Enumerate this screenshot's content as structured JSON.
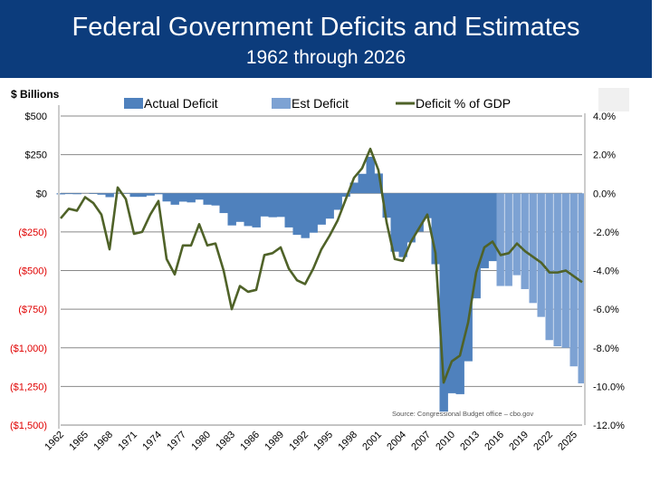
{
  "header": {
    "title": "Federal Government Deficits and Estimates",
    "subtitle": "1962 through 2026"
  },
  "chart_data": {
    "type": "area+line",
    "title": "Federal Government Deficits and Estimates",
    "subtitle": "1962 through 2026",
    "ylabel": "$ Billions",
    "ylim": [
      -1500,
      500
    ],
    "y2lim": [
      -12,
      4
    ],
    "yticks": [
      "$500",
      "$250",
      "$0",
      "($250)",
      "($500)",
      "($750)",
      "($1,000)",
      "($1,250)",
      "($1,500)"
    ],
    "y2ticks": [
      "4.0%",
      "2.0%",
      "0.0%",
      "-2.0%",
      "-4.0%",
      "-6.0%",
      "-8.0%",
      "-10.0%",
      "-12.0%"
    ],
    "xticks": [
      "1962",
      "1965",
      "1968",
      "1971",
      "1974",
      "1977",
      "1980",
      "1983",
      "1986",
      "1989",
      "1992",
      "1995",
      "1998",
      "2001",
      "2004",
      "2007",
      "2010",
      "2013",
      "2016",
      "2019",
      "2022",
      "2025"
    ],
    "grid": true,
    "legend": "top",
    "source": "Source: Congressional Budget office – cbo.gov",
    "colors": {
      "actual": "#4f81bd",
      "estimate": "#7da2d3",
      "line": "#4f6228",
      "header": "#0c3c7c",
      "negative_label": "#e00000"
    },
    "series": [
      {
        "name": "Actual Deficit",
        "axis": "left",
        "x_start": 1962,
        "values": [
          -7,
          -5,
          -6,
          -1,
          -4,
          -9,
          -25,
          3,
          -3,
          -23,
          -23,
          -15,
          -6,
          -53,
          -74,
          -54,
          -59,
          -41,
          -74,
          -79,
          -128,
          -208,
          -185,
          -212,
          -221,
          -150,
          -155,
          -153,
          -221,
          -269,
          -290,
          -255,
          -203,
          -164,
          -107,
          -22,
          69,
          126,
          236,
          128,
          -158,
          -378,
          -413,
          -318,
          -248,
          -161,
          -459,
          -1413,
          -1294,
          -1300,
          -1087,
          -680,
          -485,
          -439
        ]
      },
      {
        "name": "Est Deficit",
        "axis": "left",
        "x_start": 2016,
        "values": [
          -600,
          -600,
          -530,
          -620,
          -710,
          -800,
          -950,
          -990,
          -1000,
          -1120,
          -1230
        ]
      },
      {
        "name": "Deficit % of GDP",
        "axis": "right",
        "x_start": 1962,
        "values": [
          -1.3,
          -0.8,
          -0.9,
          -0.2,
          -0.5,
          -1.1,
          -2.9,
          0.3,
          -0.3,
          -2.1,
          -2.0,
          -1.1,
          -0.4,
          -3.4,
          -4.2,
          -2.7,
          -2.7,
          -1.6,
          -2.7,
          -2.6,
          -4.0,
          -6.0,
          -4.8,
          -5.1,
          -5.0,
          -3.2,
          -3.1,
          -2.8,
          -3.9,
          -4.5,
          -4.7,
          -3.9,
          -2.9,
          -2.2,
          -1.4,
          -0.3,
          0.8,
          1.3,
          2.3,
          1.2,
          -1.5,
          -3.4,
          -3.5,
          -2.5,
          -1.8,
          -1.1,
          -3.1,
          -9.8,
          -8.7,
          -8.4,
          -6.7,
          -4.1,
          -2.8,
          -2.5,
          -3.2,
          -3.1,
          -2.6,
          -3.0,
          -3.3,
          -3.6,
          -4.1,
          -4.1,
          -4.0,
          -4.3,
          -4.6
        ]
      }
    ]
  }
}
